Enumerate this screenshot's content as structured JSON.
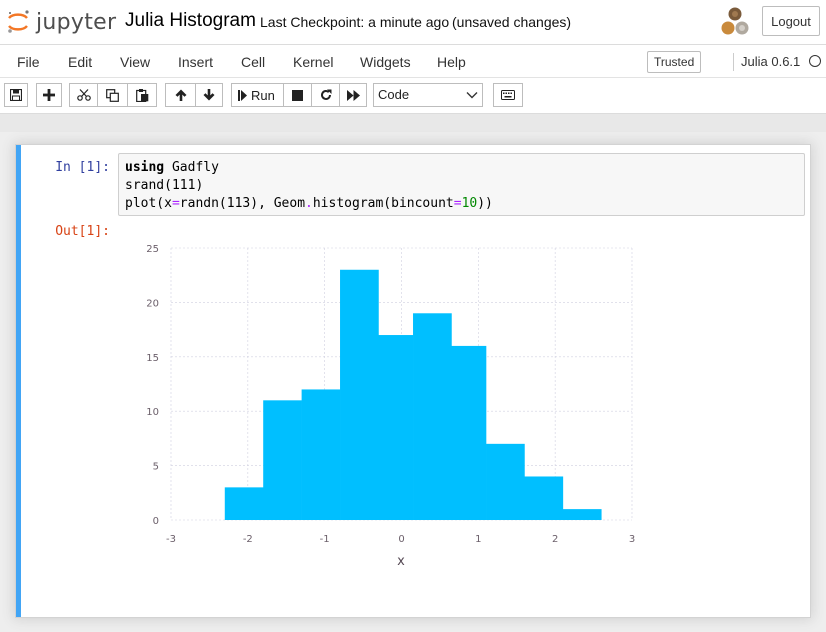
{
  "header": {
    "logo_text": "jupyter",
    "notebook_name": "Julia Histogram",
    "checkpoint": "Last Checkpoint: a minute ago",
    "autosave_status": "(unsaved changes)",
    "logout_label": "Logout"
  },
  "menubar": {
    "items": [
      "File",
      "Edit",
      "View",
      "Insert",
      "Cell",
      "Kernel",
      "Widgets",
      "Help"
    ],
    "trusted_label": "Trusted",
    "kernel_name": "Julia 0.6.1"
  },
  "toolbar": {
    "run_label": "Run",
    "cell_type": "Code",
    "icons": [
      "save-icon",
      "plus-icon",
      "cut-icon",
      "copy-icon",
      "paste-icon",
      "arrow-up-icon",
      "arrow-down-icon",
      "step-forward-icon",
      "stop-icon",
      "restart-icon",
      "fast-forward-icon",
      "keyboard-icon"
    ]
  },
  "cell": {
    "in_prompt": "In [1]:",
    "out_prompt": "Out[1]:",
    "code_line1_keyword": "using",
    "code_line1_rest": " Gadfly",
    "code_line2": "srand(111)",
    "code_line3_a": "plot(x",
    "code_line3_eq1": "=",
    "code_line3_b": "randn(113), Geom",
    "code_line3_dot": ".",
    "code_line3_c": "histogram(bincount",
    "code_line3_eq2": "=",
    "code_line3_num": "10",
    "code_line3_d": "))"
  },
  "chart_data": {
    "type": "bar",
    "xlabel": "x",
    "ylabel": "",
    "bar_color": "#00bfff",
    "xlim": [
      -3,
      3
    ],
    "ylim": [
      0,
      25
    ],
    "xticks": [
      -3,
      -2,
      -1,
      0,
      1,
      2,
      3
    ],
    "yticks": [
      0,
      5,
      10,
      15,
      20,
      25
    ],
    "grid": true,
    "bins": [
      {
        "x0": -2.3,
        "x1": -1.8,
        "count": 3
      },
      {
        "x0": -1.8,
        "x1": -1.3,
        "count": 11
      },
      {
        "x0": -1.3,
        "x1": -0.8,
        "count": 12
      },
      {
        "x0": -0.8,
        "x1": -0.3,
        "count": 23
      },
      {
        "x0": -0.3,
        "x1": 0.15,
        "count": 17
      },
      {
        "x0": 0.15,
        "x1": 0.65,
        "count": 19
      },
      {
        "x0": 0.65,
        "x1": 1.1,
        "count": 16
      },
      {
        "x0": 1.1,
        "x1": 1.6,
        "count": 7
      },
      {
        "x0": 1.6,
        "x1": 2.1,
        "count": 4
      },
      {
        "x0": 2.1,
        "x1": 2.6,
        "count": 1
      }
    ]
  }
}
